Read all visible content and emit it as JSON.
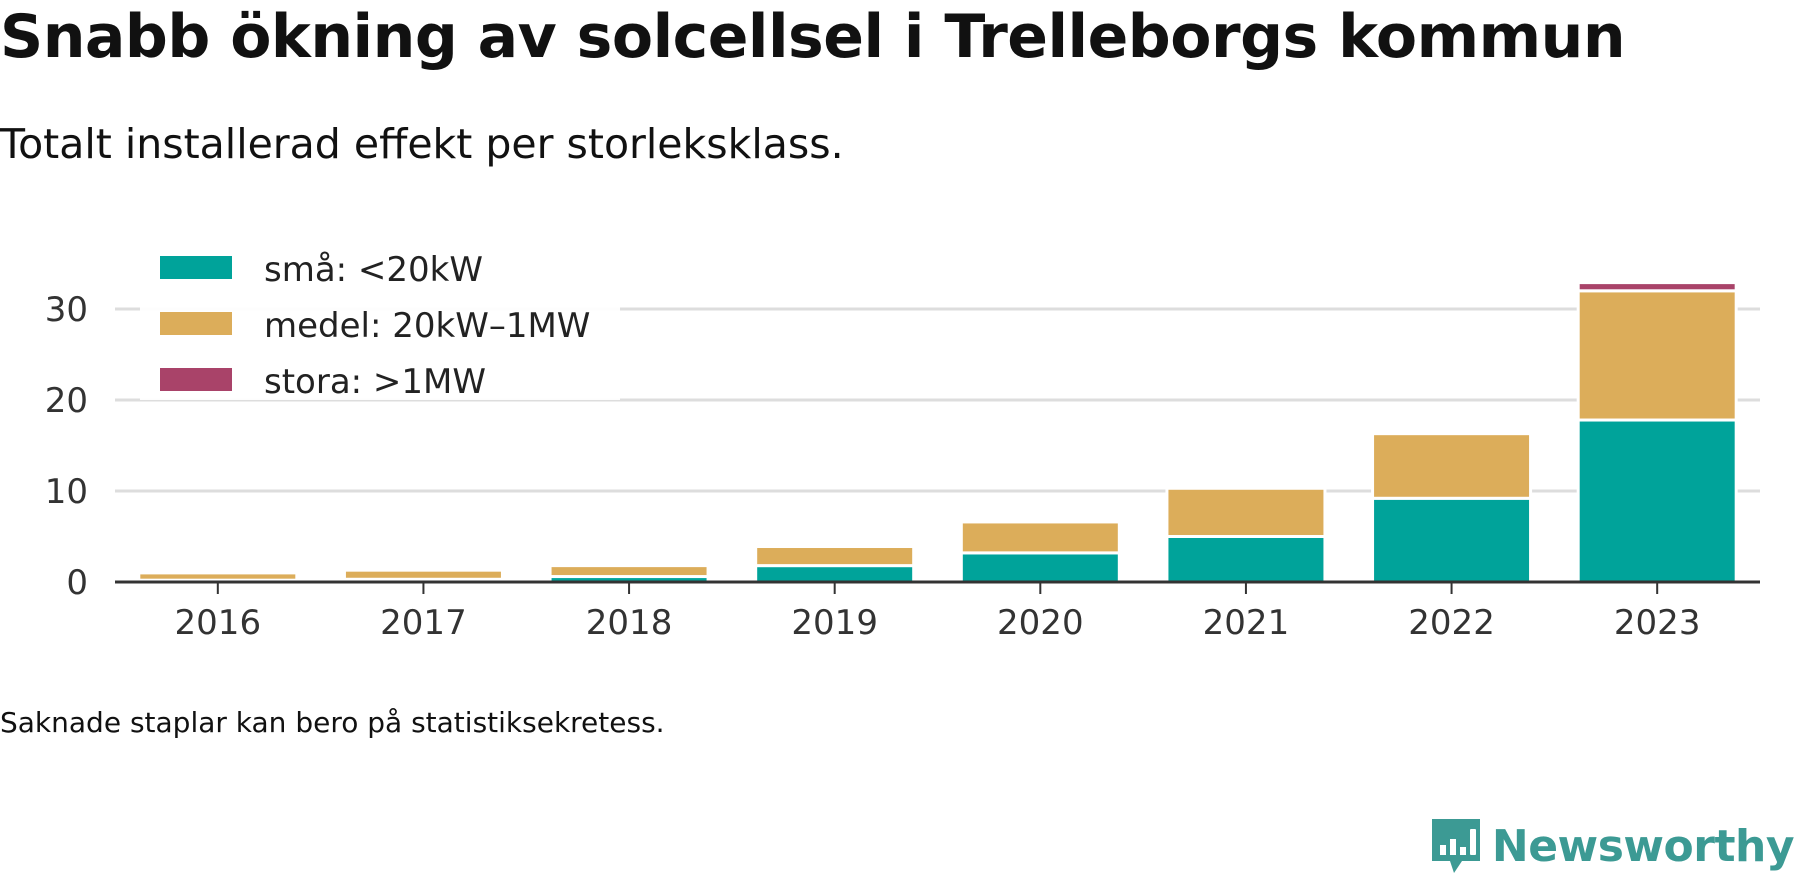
{
  "title": "Snabb ökning av solcellsel i Trelleborgs kommun",
  "subtitle": "Totalt installerad effekt per storleksklass.",
  "note": "Saknade staplar kan bero på statistiksekretess.",
  "brand": {
    "name": "Newsworthy",
    "logo_icon": "newsworthy-logo-icon",
    "color": "#3c9a94"
  },
  "chart_data": {
    "type": "bar",
    "stacked": true,
    "categories": [
      "2016",
      "2017",
      "2018",
      "2019",
      "2020",
      "2021",
      "2022",
      "2023"
    ],
    "series": [
      {
        "name": "små: <20kW",
        "color": "#00a39a",
        "values": [
          0.2,
          0.3,
          0.6,
          1.8,
          3.2,
          5.0,
          9.2,
          17.8
        ]
      },
      {
        "name": "medel: 20kW–1MW",
        "color": "#dcad5a",
        "values": [
          0.8,
          1.0,
          1.2,
          2.1,
          3.4,
          5.3,
          7.1,
          14.2
        ]
      },
      {
        "name": "stora: >1MW",
        "color": "#a94369",
        "values": [
          0,
          0,
          0,
          0,
          0,
          0,
          0,
          0.9
        ]
      }
    ],
    "yticks": [
      0,
      10,
      20,
      30
    ],
    "ylim": [
      0,
      33
    ],
    "xlabel": "",
    "ylabel": "",
    "grid": true,
    "legend_position": "top-left"
  }
}
